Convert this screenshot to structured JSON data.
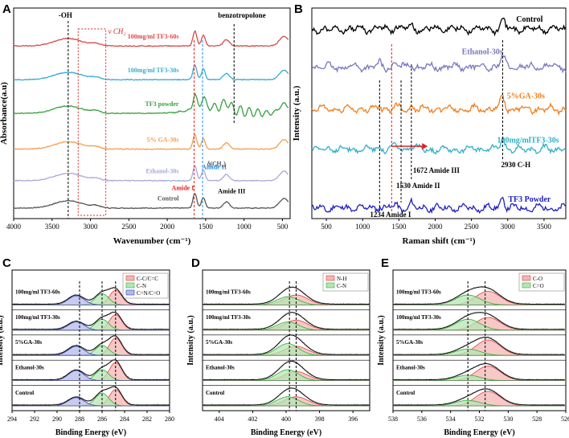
{
  "figure": {
    "panel_labels": [
      "A",
      "B",
      "C",
      "D",
      "E"
    ]
  },
  "chart_data": [
    {
      "panel": "A",
      "type": "line",
      "xlabel": "Wavenumber (cm⁻¹)",
      "ylabel": "Absorbance(a.u)",
      "xlim": [
        4000,
        400
      ],
      "xticks": [
        "4000",
        "3500",
        "3000",
        "2500",
        "2000",
        "1500",
        "1000",
        "500"
      ],
      "xtick_values": [
        4000,
        3500,
        3000,
        2500,
        2000,
        1500,
        1000,
        500
      ],
      "series": [
        {
          "name": "Control",
          "color": "#555555",
          "offset": 0.05
        },
        {
          "name": "Ethanol-30s",
          "color": "#a8a8d8",
          "offset": 0.18
        },
        {
          "name": "5% GA-30s",
          "color": "#f0a050",
          "offset": 0.33
        },
        {
          "name": "TF3 powder",
          "color": "#3aa040",
          "offset": 0.5
        },
        {
          "name": "100mg/ml TF3-30s",
          "color": "#3aaad0",
          "offset": 0.66
        },
        {
          "name": "100mg/ml TF3-60s",
          "color": "#d84a4a",
          "offset": 0.82
        }
      ],
      "reference_lines": [
        {
          "label": "-OH",
          "x": 3290,
          "color": "#000000"
        },
        {
          "label": "Amide I",
          "x": 1650,
          "color": "#e02020"
        },
        {
          "label": "Amide II",
          "x": 1540,
          "color": "#2090e0"
        },
        {
          "label": "benzotropolone",
          "x": 1130,
          "color": "#000000"
        }
      ],
      "annotations": [
        "ν CH₂",
        "δ(CH₂)",
        "Amide III"
      ],
      "band_range": [
        3160,
        2800
      ]
    },
    {
      "panel": "B",
      "type": "line",
      "xlabel": "Raman shift (cm⁻¹)",
      "ylabel": "Intensity (a.u.)",
      "xlim": [
        300,
        3800
      ],
      "xticks": [
        "500",
        "1000",
        "1500",
        "2000",
        "2500",
        "3000",
        "3500"
      ],
      "xtick_values": [
        500,
        1000,
        1500,
        2000,
        2500,
        3000,
        3500
      ],
      "series": [
        {
          "name": "TF3 Powder",
          "color": "#2020c0",
          "label_color": "#2020c0",
          "offset": 0.05
        },
        {
          "name": "100mg/mlTF3-30s",
          "color": "#30b0c8",
          "label_color": "#30b0c8",
          "offset": 0.33
        },
        {
          "name": "5%GA-30s",
          "color": "#f08020",
          "label_color": "#f08020",
          "offset": 0.52
        },
        {
          "name": "Ethanol-30s",
          "color": "#7878c0",
          "label_color": "#7878c0",
          "offset": 0.72
        },
        {
          "name": "Control",
          "color": "#000000",
          "label_color": "#000000",
          "offset": 0.9
        }
      ],
      "reference_lines": [
        {
          "label": "1234 Amide I",
          "x": 1234
        },
        {
          "label": "1530 Amide II",
          "x": 1530
        },
        {
          "label": "1672 Amide III",
          "x": 1672
        },
        {
          "label": "2930 C-H",
          "x": 2930
        },
        {
          "label": "",
          "x": 1400,
          "color": "#e02020"
        }
      ]
    },
    {
      "panel": "C",
      "type": "line",
      "xlabel": "Binding Energy (eV)",
      "ylabel": "Intensity (a.u.)",
      "xlim": [
        294,
        280
      ],
      "xticks": [
        "294",
        "292",
        "290",
        "288",
        "286",
        "284",
        "282",
        "280"
      ],
      "xtick_values": [
        294,
        292,
        290,
        288,
        286,
        284,
        282,
        280
      ],
      "legend": [
        {
          "label": "C-C/C=C",
          "color": "#e04040",
          "fill": "#f5b5b5"
        },
        {
          "label": "C-N",
          "color": "#30b030",
          "fill": "#b5e5b5"
        },
        {
          "label": "C=N/C=O",
          "color": "#3040c0",
          "fill": "#b5b8ea"
        }
      ],
      "samples": [
        "100mg/ml TF3-60s",
        "100mg/ml TF3-30s",
        "5%GA-30s",
        "Ethanol-30s",
        "Control"
      ],
      "reference_lines": [
        288.0,
        286.0,
        284.8
      ],
      "peaks": [
        284.8,
        286.0,
        288.3
      ]
    },
    {
      "panel": "D",
      "type": "line",
      "xlabel": "Binding Energy (eV)",
      "ylabel": "Intensity (a.u.)",
      "xlim": [
        405,
        395
      ],
      "xticks": [
        "404",
        "402",
        "400",
        "398",
        "396"
      ],
      "xtick_values": [
        404,
        402,
        400,
        398,
        396
      ],
      "legend": [
        {
          "label": "N-H",
          "color": "#e04040",
          "fill": "#f5b5b5"
        },
        {
          "label": "C-N",
          "color": "#30b030",
          "fill": "#b5e5b5"
        }
      ],
      "samples": [
        "100mg/ml TF3-60s",
        "100mg/ml TF3-30s",
        "5%GA-30s",
        "Ethanol-30s",
        "Control"
      ],
      "reference_lines": [
        399.8,
        399.4
      ],
      "peaks": [
        399.4,
        399.9
      ]
    },
    {
      "panel": "E",
      "type": "line",
      "xlabel": "Binding Energy (eV)",
      "ylabel": "Intensity (a.u.)",
      "xlim": [
        538,
        526
      ],
      "xticks": [
        "538",
        "536",
        "534",
        "532",
        "530",
        "528",
        "526"
      ],
      "xtick_values": [
        538,
        536,
        534,
        532,
        530,
        528,
        526
      ],
      "legend": [
        {
          "label": "C-O",
          "color": "#e04040",
          "fill": "#f5b5b5"
        },
        {
          "label": "C=O",
          "color": "#30b030",
          "fill": "#b5e5b5"
        }
      ],
      "samples": [
        "100mg/ml TF3-60s",
        "100mg/ml TF3-30s",
        "5%GA-30s",
        "Ethanol-30s",
        "Control"
      ],
      "reference_lines": [
        532.8,
        531.6
      ],
      "peaks": [
        531.4,
        532.8
      ]
    }
  ]
}
